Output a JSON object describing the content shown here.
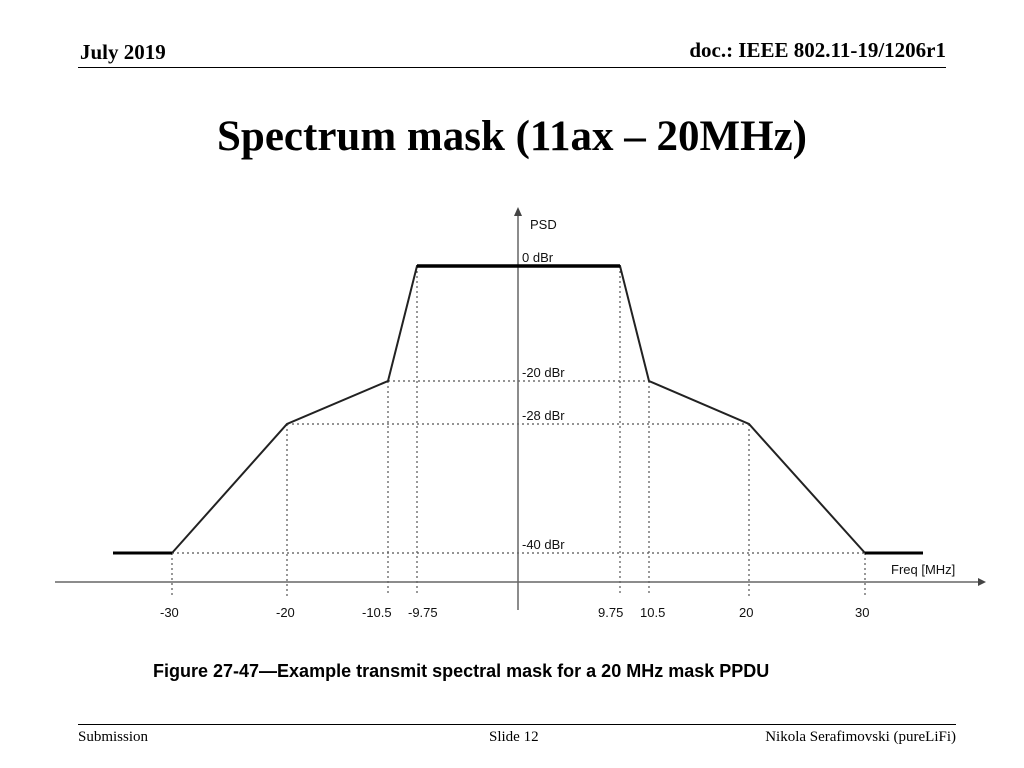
{
  "header": {
    "date": "July 2019",
    "doc": "doc.: IEEE 802.11-19/1206r1"
  },
  "slide_title": "Spectrum mask (11ax – 20MHz)",
  "chart_data": {
    "type": "line",
    "title": "",
    "ylabel": "PSD",
    "xlabel": "Freq [MHz]",
    "caption": "Figure 27-47—Example transmit spectral mask for a 20 MHz mask PPDU",
    "x_tick_labels": [
      "-30",
      "-20",
      "-10.5",
      "-9.75",
      "9.75",
      "10.5",
      "20",
      "30"
    ],
    "y_level_labels": [
      "0 dBr",
      "-20 dBr",
      "-28 dBr",
      "-40 dBr"
    ],
    "series": [
      {
        "name": "mask",
        "x": [
          -30,
          -20,
          -10.5,
          -9.75,
          9.75,
          10.5,
          20,
          30
        ],
        "y": [
          -40,
          -28,
          -20,
          0,
          0,
          -20,
          -28,
          -40
        ]
      }
    ],
    "flat_extension_left": -40,
    "flat_extension_right": -40
  },
  "footer": {
    "left": "Submission",
    "center": "Slide 12",
    "right": "Nikola Serafimovski (pureLiFi)"
  }
}
